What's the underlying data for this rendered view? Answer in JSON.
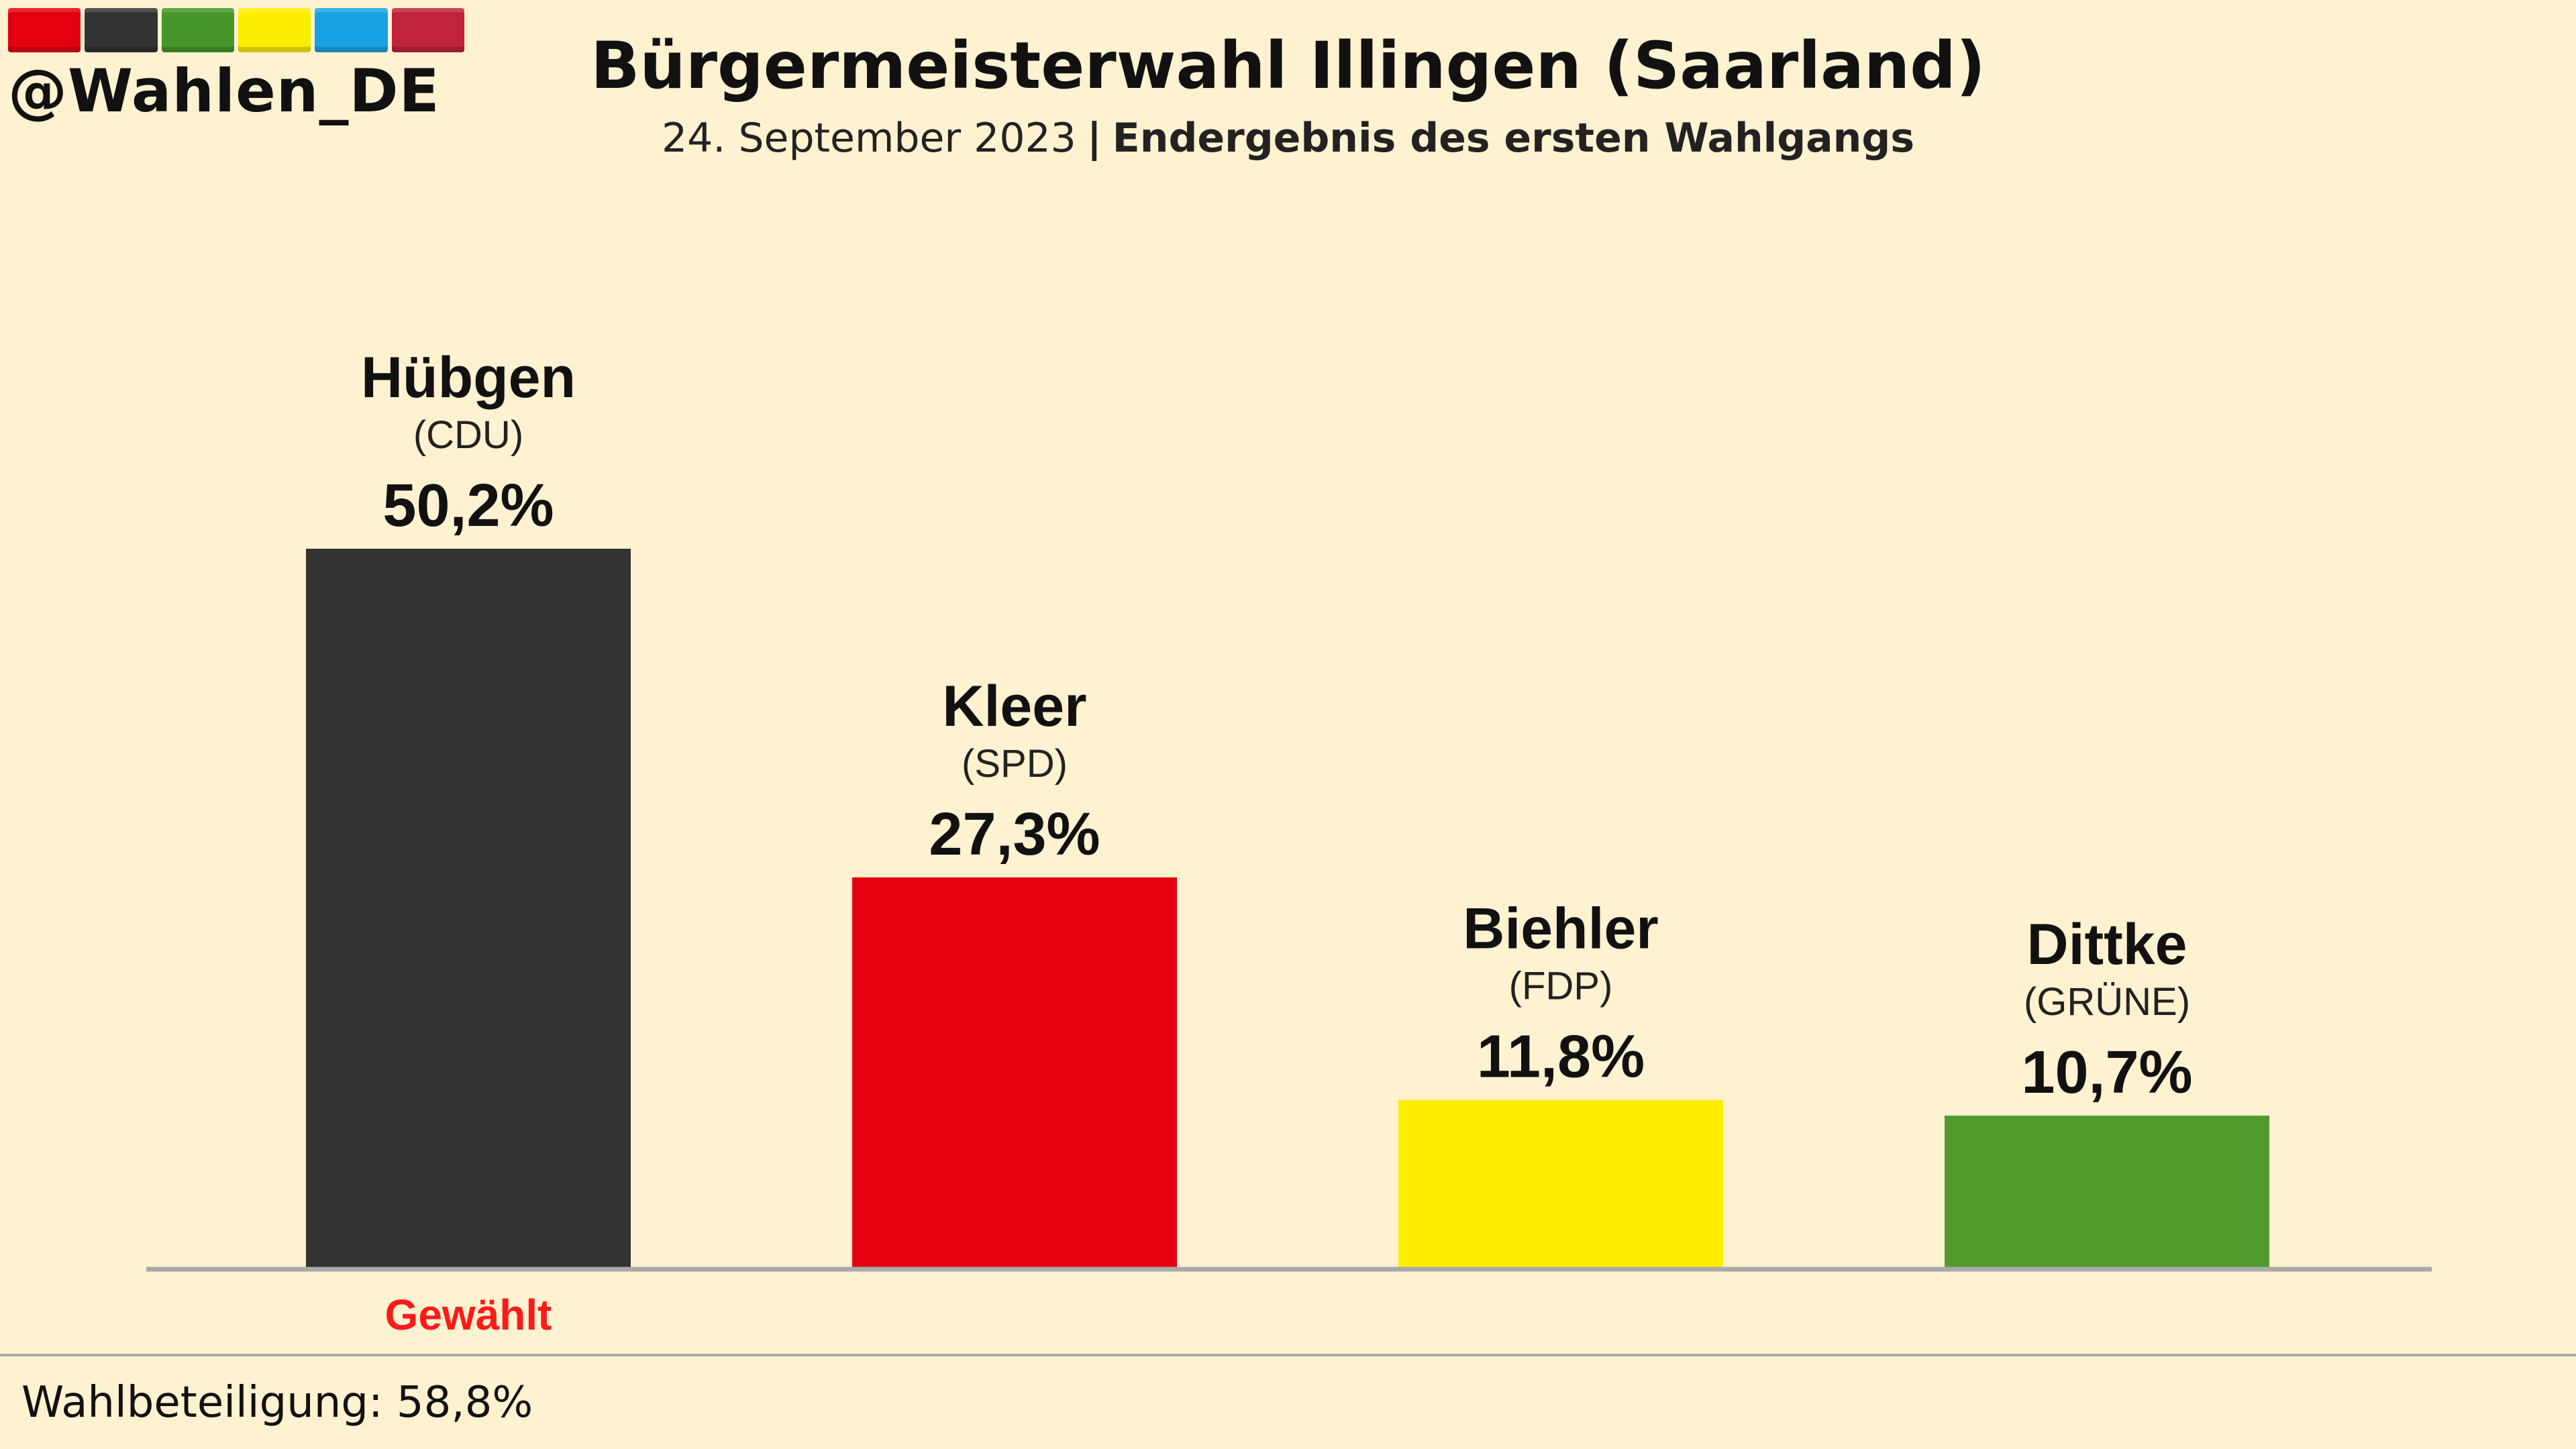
{
  "brand": {
    "handle": "@Wahlen_DE",
    "stripe_colors": [
      "#e3000f",
      "#333333",
      "#46962b",
      "#ffed00",
      "#1aa1e4",
      "#c0243c"
    ]
  },
  "header": {
    "title": "Bürgermeisterwahl Illingen (Saarland)",
    "date": "24. September 2023",
    "separator": "|",
    "result_type": "Endergebnis des ersten Wahlgangs"
  },
  "chart_data": {
    "type": "bar",
    "categories": [
      "Hübgen",
      "Kleer",
      "Biehler",
      "Dittke"
    ],
    "parties": [
      "(CDU)",
      "(SPD)",
      "(FDP)",
      "(GRÜNE)"
    ],
    "values": [
      50.2,
      27.3,
      11.8,
      10.7
    ],
    "value_labels": [
      "50,2%",
      "27,3%",
      "11,8%",
      "10,7%"
    ],
    "colors": [
      "#333333",
      "#e3000f",
      "#ffed00",
      "#509a2e"
    ],
    "winner_index": 0,
    "winner_label": "Gewählt",
    "ylim": [
      0,
      50.2
    ],
    "grid": false
  },
  "footer": {
    "turnout": "Wahlbeteiligung: 58,8%"
  }
}
